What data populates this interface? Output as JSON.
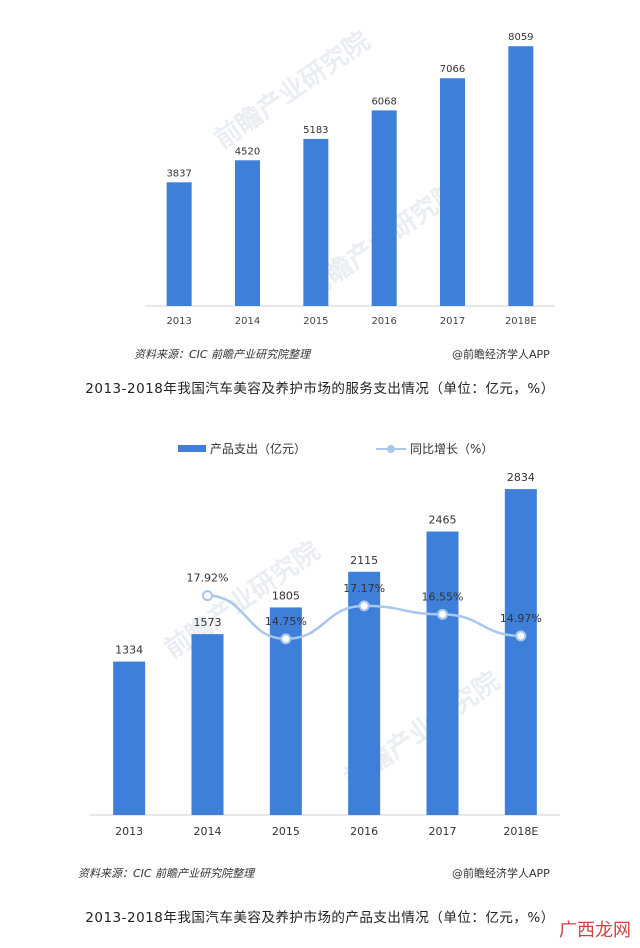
{
  "chart_data": [
    {
      "type": "bar",
      "categories": [
        "2013",
        "2014",
        "2015",
        "2016",
        "2017",
        "2018E"
      ],
      "values": [
        3837,
        4520,
        5183,
        6068,
        7066,
        8059
      ],
      "ylim": [
        0,
        8500
      ],
      "bar_color": "#3d7fd9",
      "grid": false,
      "title": "2013-2018年我国汽车美容及养护市场的服务支出情况（单位：亿元，%）",
      "source": "资料来源：CIC 前瞻产业研究院整理",
      "brand": "@前瞻经济学人APP"
    },
    {
      "type": "bar",
      "categories": [
        "2013",
        "2014",
        "2015",
        "2016",
        "2017",
        "2018E"
      ],
      "series": [
        {
          "name": "产品支出（亿元）",
          "kind": "bar",
          "values": [
            1334,
            1573,
            1805,
            2115,
            2465,
            2834
          ]
        },
        {
          "name": "同比增长（%）",
          "kind": "line",
          "values": [
            null,
            17.92,
            14.75,
            17.17,
            16.55,
            14.97
          ],
          "labels": [
            "",
            "17.92%",
            "14.75%",
            "17.17%",
            "16.55%",
            "14.97%"
          ]
        }
      ],
      "ylim": [
        0,
        3000
      ],
      "y2lim": [
        0,
        22
      ],
      "bar_color": "#3d7fd9",
      "line_color": "#a9c7ec",
      "legend_position": "top",
      "grid": false,
      "title": "2013-2018年我国汽车美容及养护市场的产品支出情况（单位：亿元，%）",
      "source": "资料来源：CIC 前瞻产业研究院整理",
      "brand": "@前瞻经济学人APP"
    }
  ],
  "watermark": "前瞻产业研究院",
  "corner_stamp": "广西龙网"
}
